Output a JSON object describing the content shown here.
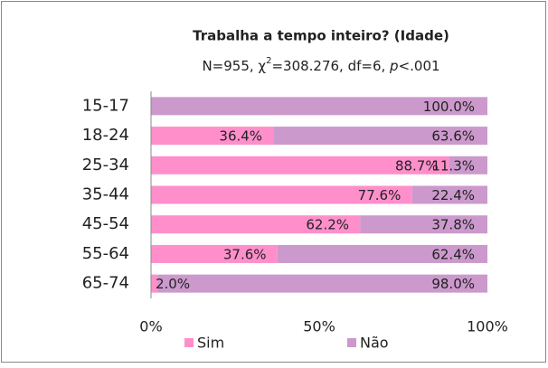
{
  "chart_data": {
    "type": "stacked_barh",
    "title": "Trabalha a tempo inteiro? (Idade)",
    "subtitle": [
      "N=955, χ",
      "2",
      "=308.276, df=6, ",
      "p",
      "<.001"
    ],
    "categories": [
      "15-17",
      "18-24",
      "25-34",
      "35-44",
      "45-54",
      "55-64",
      "65-74"
    ],
    "series": [
      {
        "name": "Sim",
        "color": "#ff8fcb",
        "values": [
          0,
          36.4,
          88.7,
          77.6,
          62.2,
          37.6,
          2.0
        ],
        "value_labels": [
          null,
          "36.4%",
          "88.7%",
          "77.6%",
          "62.2%",
          "37.6%",
          "2.0%"
        ]
      },
      {
        "name": "Não",
        "color": "#cc99cc",
        "values": [
          100.0,
          63.6,
          11.3,
          22.4,
          37.8,
          62.4,
          98.0
        ],
        "value_labels": [
          "100.0%",
          "63.6%",
          "11.3%",
          "22.4%",
          "37.8%",
          "62.4%",
          "98.0%"
        ]
      }
    ],
    "xlim": [
      0,
      100
    ],
    "xticks": [
      {
        "value": 0,
        "label": "0%"
      },
      {
        "value": 50,
        "label": "50%"
      },
      {
        "value": 100,
        "label": "100%"
      }
    ],
    "legend": "bottom"
  }
}
